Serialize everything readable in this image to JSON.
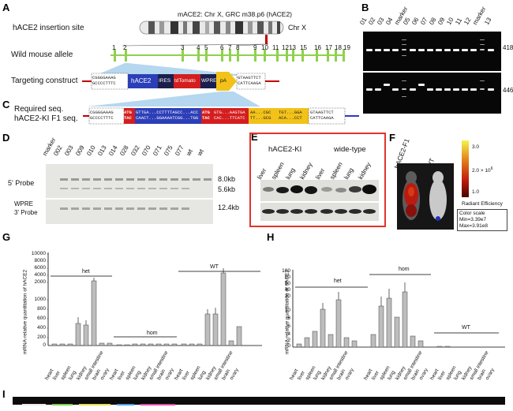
{
  "panels": {
    "A": "A",
    "B": "B",
    "C": "C",
    "D": "D",
    "E": "E",
    "F": "F",
    "G": "G",
    "H": "H",
    "I": "I"
  },
  "panel_a": {
    "insertion_label": "hACE2 insertion site",
    "chromosome_label": "mACE2: Chr X, GRC m38.p6 (hACE2)",
    "chr_name": "Chr X",
    "wild_allele_label": "Wild mouse allele",
    "exons": [
      "1",
      "2",
      "3",
      "4",
      "5",
      "6",
      "7",
      "8",
      "9",
      "10",
      "11",
      "12",
      "13",
      "15",
      "16",
      "17",
      "18",
      "19"
    ],
    "targeting_label": "Targeting construct",
    "construct_left_seq": [
      "CGGGGAAAG",
      "GCCCCTTTC"
    ],
    "construct_segments": [
      "hACE2",
      "IRES",
      "tdTomato",
      "WPRE",
      "pA"
    ],
    "construct_right_seq": [
      "GTAAGTTCT",
      "CATTCAAGA"
    ]
  },
  "panel_c": {
    "required_label": "Required seq.",
    "f1_label": "hACE2-KI F1 seq.",
    "left_seq": [
      "CGGGGAAAG",
      "GCCCCTTTC"
    ],
    "atg_top": "ATG",
    "atg_bottom": "TAC",
    "mid_top": "GTTGA...CCTTTTAGCC...ACC",
    "mid_bottom": "CAACT...GGAAAATCGG...TGG",
    "red_top": "GTG...AAGTGA",
    "red_bottom": "CAC...TTCATC",
    "yel_top": "AA...CGC",
    "yel_bottom": "TT...GCG",
    "end_top": "TGT...GGA",
    "end_bottom": "ACA...CCT",
    "right_seq": [
      "GTAAGTTCT",
      "CATTCAAGA"
    ]
  },
  "panel_b": {
    "lanes": [
      "01",
      "02",
      "03",
      "04",
      "marker",
      "05",
      "06",
      "07",
      "08",
      "09",
      "10",
      "11",
      "12",
      "marker",
      "13"
    ],
    "size_top": "418",
    "size_bottom": "446"
  },
  "panel_d": {
    "lanes": [
      "marker",
      "002",
      "003",
      "009",
      "010",
      "013",
      "014",
      "028",
      "032",
      "070",
      "071",
      "075",
      "077",
      "wt",
      "wt"
    ],
    "probe_5": "5' Probe",
    "probe_3_line1": "WPRE",
    "probe_3_line2": "3' Probe",
    "size_1": "8.0kb",
    "size_2": "5.6kb",
    "size_3": "12.4kb"
  },
  "panel_e": {
    "group_ki": "hACE2-KI",
    "group_wt": "wide-type",
    "lanes": [
      "liver",
      "spleen",
      "lung",
      "kidney",
      "liver",
      "spleen",
      "lung",
      "kidney"
    ]
  },
  "panel_f": {
    "label_ki": "hACE2-F1",
    "label_wt": "WT",
    "scale_top": "3.0",
    "scale_exp": "2.0 × 10",
    "scale_exp_sup": "6",
    "scale_bottom": "1.0",
    "scale_title": "Radiant Efficiency",
    "cs_title": "Color scale",
    "cs_min": "Min=3.39e7",
    "cs_max": "Max=3.91e8",
    "colors": {
      "hot": "#e8e000",
      "mid": "#d21a10",
      "low": "#6a0000"
    }
  },
  "panel_g": {
    "ylabel": "mRNA-relative quantitation of hACE2",
    "ticks": [
      "10000",
      "8000",
      "6000",
      "4000",
      "2000",
      "1000",
      "800",
      "600",
      "400",
      "200",
      "0"
    ],
    "groups": [
      "het",
      "hom",
      "WT"
    ],
    "tissues": [
      "heart",
      "liver",
      "spleen",
      "lung",
      "kidney",
      "small intestine",
      "brain",
      "ovary"
    ]
  },
  "panel_h": {
    "ylabel": "mRNA-relative quantitation of hACE2",
    "ticks": [
      "100",
      "80",
      "60",
      "40",
      "20",
      "10",
      "8",
      "6",
      "4",
      "2",
      "0"
    ],
    "groups": [
      "het",
      "hom",
      "WT"
    ],
    "tissues": [
      "heart",
      "liver",
      "spleen",
      "lung",
      "kidney",
      "small intestine",
      "brain",
      "ovary"
    ]
  }
}
